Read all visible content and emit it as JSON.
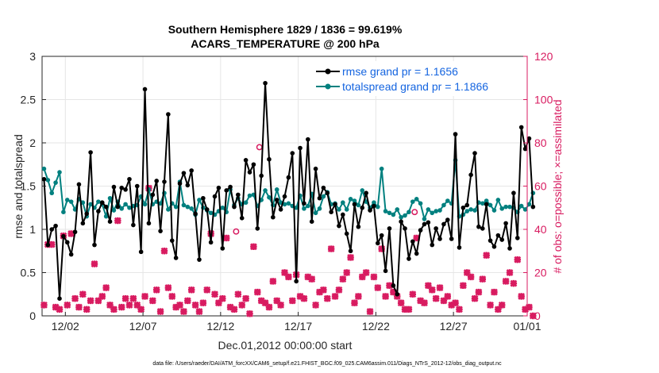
{
  "chart_data": {
    "type": "line",
    "title_line1": "Southern Hemisphere 1829 / 1836 = 99.619%",
    "title_line2": "ACARS_TEMPERATURE @ 200 hPa",
    "xlabel": "Dec.01,2012 00:00:00 start",
    "ylabel_left": "rmse and totalspread",
    "ylabel_right": "# of obs: o=possible; ×=assimilated",
    "footer": "data file: /Users/raeder/DAI/ATM_forcXX/CAM6_setup/f.e21.FHIST_BGC.f09_025.CAM6assim.011/Diags_NTrS_2012-12/obs_diag_output.nc",
    "xlim": [
      0.5,
      31.75
    ],
    "ylim_left": [
      0,
      3
    ],
    "ylim_right": [
      0,
      120
    ],
    "x_ticks": [
      {
        "value": 2,
        "label": "12/02"
      },
      {
        "value": 7,
        "label": "12/07"
      },
      {
        "value": 12,
        "label": "12/12"
      },
      {
        "value": 17,
        "label": "12/17"
      },
      {
        "value": 22,
        "label": "12/22"
      },
      {
        "value": 27,
        "label": "12/27"
      },
      {
        "value": 32,
        "label": "01/01"
      }
    ],
    "y_ticks_left": [
      "0",
      "0.5",
      "1",
      "1.5",
      "2",
      "2.5",
      "3"
    ],
    "y_ticks_right": [
      "0",
      "20",
      "40",
      "60",
      "80",
      "100",
      "120"
    ],
    "colors": {
      "rmse": "#000000",
      "totalspread": "#00807f",
      "obs": "#d81b60",
      "legend_text": "#1565e0",
      "grid": "#e6e6e6"
    },
    "series": [
      {
        "name": "rmse",
        "legend": "rmse grand pr = 1.1656",
        "x_start": 0.625,
        "x_step": 0.25,
        "values": [
          1.58,
          0.82,
          1.0,
          1.04,
          0.2,
          0.92,
          0.85,
          0.71,
          0.97,
          1.52,
          1.07,
          1.18,
          1.89,
          0.82,
          1.21,
          1.31,
          1.26,
          1.09,
          1.49,
          1.26,
          1.48,
          1.46,
          1.58,
          1.05,
          1.5,
          0.74,
          2.62,
          1.07,
          1.4,
          1.56,
          0.98,
          1.55,
          2.33,
          0.87,
          0.67,
          1.53,
          1.65,
          1.51,
          1.68,
          1.18,
          0.65,
          1.36,
          1.23,
          0.85,
          1.38,
          1.48,
          0.78,
          1.45,
          1.49,
          1.26,
          1.4,
          1.13,
          1.8,
          1.66,
          1.75,
          1.01,
          1.62,
          2.69,
          1.81,
          1.14,
          1.34,
          1.23,
          1.38,
          1.6,
          1.88,
          0.4,
          1.94,
          1.3,
          2.04,
          1.09,
          1.7,
          1.36,
          1.48,
          1.42,
          1.2,
          1.29,
          1.04,
          1.17,
          0.95,
          0.75,
          1.29,
          1.03,
          1.25,
          1.42,
          1.22,
          1.27,
          0.84,
          0.93,
          0.52,
          1.01,
          0.35,
          0.25,
          1.09,
          1.01,
          0.66,
          0.86,
          0.72,
          0.99,
          1.06,
          1.08,
          0.82,
          1.01,
          0.89,
          1.06,
          1.11,
          0.89,
          2.1,
          0.79,
          1.25,
          1.28,
          1.63,
          1.88,
          1.03,
          1.01,
          1.29,
          0.87,
          0.8,
          0.93,
          0.88,
          1.07,
          0.78,
          1.42,
          0.9,
          2.18,
          1.93,
          2.05,
          1.26
        ]
      },
      {
        "name": "totalspread",
        "legend": "totalspread grand pr = 1.1866",
        "x_start": 0.625,
        "x_step": 0.25,
        "values": [
          1.7,
          1.57,
          1.42,
          1.54,
          1.66,
          1.2,
          1.34,
          1.32,
          1.23,
          1.35,
          1.31,
          1.15,
          1.29,
          1.25,
          1.32,
          1.29,
          1.15,
          1.36,
          1.22,
          1.32,
          1.24,
          1.29,
          1.25,
          1.27,
          1.28,
          1.38,
          1.29,
          1.46,
          1.29,
          1.32,
          1.3,
          1.42,
          1.23,
          1.3,
          1.26,
          1.55,
          1.28,
          1.26,
          1.24,
          1.17,
          1.34,
          1.25,
          1.22,
          1.19,
          1.17,
          1.21,
          1.25,
          1.2,
          1.46,
          1.28,
          1.36,
          1.29,
          1.31,
          1.39,
          1.4,
          1.27,
          1.34,
          1.45,
          1.37,
          1.28,
          1.46,
          1.31,
          1.29,
          1.3,
          1.27,
          1.25,
          1.39,
          1.24,
          1.27,
          1.41,
          1.19,
          1.24,
          1.38,
          1.43,
          1.29,
          1.3,
          1.23,
          1.31,
          1.23,
          1.35,
          1.33,
          1.28,
          1.45,
          1.32,
          1.25,
          1.31,
          1.26,
          1.7,
          1.21,
          1.19,
          1.17,
          1.23,
          1.14,
          1.16,
          1.2,
          1.32,
          1.35,
          1.3,
          1.12,
          1.23,
          1.19,
          1.21,
          1.22,
          1.28,
          1.33,
          1.3,
          1.8,
          1.15,
          1.17,
          1.21,
          1.23,
          1.22,
          1.31,
          1.3,
          1.33,
          1.28,
          1.22,
          1.34,
          1.24,
          1.26,
          1.26,
          1.25,
          1.2,
          1.27,
          1.23,
          1.29,
          1.42
        ]
      }
    ],
    "assimilated_obs": {
      "name": "assimilated",
      "x_start": 0.625,
      "x_step": 0.25,
      "values": [
        5,
        33,
        33,
        4,
        3,
        37,
        5,
        38,
        8,
        4,
        10,
        3,
        7,
        24,
        7,
        9,
        13,
        5,
        3,
        44,
        4,
        8,
        5,
        8,
        5,
        3,
        9,
        59,
        7,
        12,
        2,
        30,
        13,
        9,
        4,
        5,
        2,
        7,
        12,
        5,
        2,
        6,
        12,
        38,
        10,
        6,
        8,
        36,
        4,
        3,
        10,
        5,
        8,
        1,
        32,
        11,
        7,
        6,
        4,
        16,
        7,
        5,
        20,
        18,
        7,
        19,
        9,
        8,
        18,
        17,
        5,
        11,
        12,
        8,
        31,
        9,
        12,
        17,
        20,
        27,
        6,
        9,
        18,
        20,
        2,
        18,
        13,
        31,
        9,
        14,
        11,
        9,
        6,
        3,
        3,
        10,
        36,
        7,
        6,
        14,
        12,
        8,
        13,
        7,
        9,
        5,
        6,
        3,
        14,
        20,
        18,
        8,
        11,
        17,
        28,
        5,
        11,
        3,
        5,
        16,
        20,
        15,
        26,
        9,
        3,
        4,
        0
      ]
    },
    "possible_obs_markers": [
      {
        "x": 13.0,
        "value": 39
      },
      {
        "x": 14.5,
        "value": 78
      },
      {
        "x": 24.5,
        "value": 48
      }
    ]
  }
}
